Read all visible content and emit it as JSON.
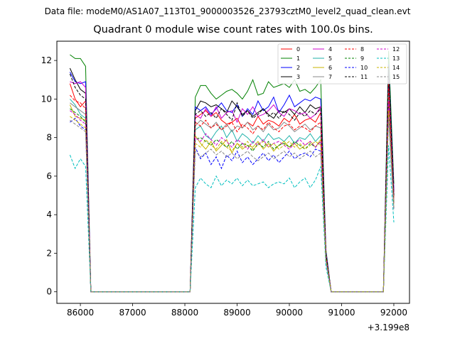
{
  "chart_data": {
    "type": "line",
    "suptitle": "Data file: modeM0/AS1A07_113T01_9000003526_23793cztM0_level2_quad_clean.evt",
    "title": "Quadrant 0 module wise count rates with 100.0s bins.",
    "xlabel": "",
    "ylabel": "",
    "x_offset_label": "+3.199e8",
    "xlim": [
      85550,
      92300
    ],
    "ylim": [
      -0.6,
      13.0
    ],
    "x_ticks": [
      "86000",
      "87000",
      "88000",
      "89000",
      "90000",
      "91000",
      "92000"
    ],
    "x_tick_values": [
      86000,
      87000,
      88000,
      89000,
      90000,
      91000,
      92000
    ],
    "y_ticks": [
      "0",
      "2",
      "4",
      "6",
      "8",
      "10",
      "12"
    ],
    "y_tick_values": [
      0,
      2,
      4,
      6,
      8,
      10,
      12
    ],
    "legend_position": "top-right",
    "segments": [
      [
        85800,
        85900,
        86000,
        86100,
        86200,
        86300,
        86400,
        86500,
        86600,
        86700,
        86800,
        86900,
        87000,
        87100,
        87200,
        87300,
        87400,
        87500,
        87600,
        87700,
        87800,
        87900,
        88000,
        88100,
        88200,
        88300,
        88400,
        88500,
        88600,
        88700,
        88800,
        88900,
        89000,
        89100,
        89200,
        89300,
        89400,
        89500,
        89600,
        89700,
        89800,
        89900,
        90000,
        90100,
        90200,
        90300,
        90400,
        90500,
        90600,
        90700,
        90800,
        90900,
        91000,
        91100,
        91200,
        91300,
        91400,
        91500,
        91600,
        91700,
        91800,
        91900,
        92000
      ]
    ],
    "series": [
      {
        "name": "0",
        "color": "#ff0000",
        "dash": "solid",
        "values": [
          10.8,
          10.0,
          9.6,
          9.9,
          0,
          0,
          0,
          0,
          0,
          0,
          0,
          0,
          0,
          0,
          0,
          0,
          0,
          0,
          0,
          0,
          0,
          0,
          0,
          0,
          9.0,
          9.2,
          9.4,
          9.1,
          9.3,
          8.9,
          8.7,
          8.8,
          9.0,
          8.5,
          8.8,
          8.6,
          9.1,
          8.7,
          8.9,
          8.8,
          8.6,
          9.0,
          8.8,
          9.2,
          8.7,
          8.9,
          9.0,
          8.8,
          9.3,
          1.9,
          0,
          0,
          0,
          0,
          0,
          0,
          0,
          0,
          0,
          0,
          0,
          11.2,
          5.2
        ]
      },
      {
        "name": "1",
        "color": "#008000",
        "dash": "solid",
        "values": [
          12.3,
          12.1,
          12.1,
          11.7,
          0,
          0,
          0,
          0,
          0,
          0,
          0,
          0,
          0,
          0,
          0,
          0,
          0,
          0,
          0,
          0,
          0,
          0,
          0,
          0,
          10.1,
          10.7,
          10.7,
          10.3,
          10.0,
          10.2,
          10.4,
          10.5,
          10.3,
          10.0,
          10.4,
          11.0,
          10.2,
          10.3,
          10.9,
          10.6,
          10.7,
          10.8,
          10.6,
          11.0,
          10.4,
          10.5,
          10.3,
          10.6,
          11.0,
          2.2,
          0,
          0,
          0,
          0,
          0,
          0,
          0,
          0,
          0,
          0,
          0,
          12.5,
          5.6
        ]
      },
      {
        "name": "2",
        "color": "#0000ff",
        "dash": "solid",
        "values": [
          11.4,
          10.9,
          10.8,
          10.9,
          0,
          0,
          0,
          0,
          0,
          0,
          0,
          0,
          0,
          0,
          0,
          0,
          0,
          0,
          0,
          0,
          0,
          0,
          0,
          0,
          9.6,
          9.4,
          9.6,
          9.2,
          9.5,
          9.8,
          9.4,
          9.3,
          9.7,
          9.1,
          9.5,
          9.2,
          9.9,
          9.4,
          9.6,
          10.1,
          9.3,
          9.7,
          10.2,
          9.6,
          9.8,
          10.0,
          9.9,
          10.1,
          10.0,
          2.1,
          0,
          0,
          0,
          0,
          0,
          0,
          0,
          0,
          0,
          0,
          0,
          11.8,
          5.3
        ]
      },
      {
        "name": "3",
        "color": "#000000",
        "dash": "solid",
        "values": [
          11.6,
          11.0,
          10.5,
          10.3,
          0,
          0,
          0,
          0,
          0,
          0,
          0,
          0,
          0,
          0,
          0,
          0,
          0,
          0,
          0,
          0,
          0,
          0,
          0,
          0,
          9.4,
          9.9,
          9.8,
          9.6,
          9.7,
          9.5,
          9.3,
          9.9,
          9.6,
          9.2,
          9.4,
          9.1,
          9.3,
          9.5,
          9.2,
          9.0,
          9.4,
          9.3,
          9.5,
          9.2,
          9.6,
          9.3,
          9.7,
          9.5,
          9.6,
          2.0,
          0,
          0,
          0,
          0,
          0,
          0,
          0,
          0,
          0,
          0,
          0,
          11.5,
          5.0
        ]
      },
      {
        "name": "4",
        "color": "#cc00cc",
        "dash": "solid",
        "values": [
          10.9,
          10.8,
          10.9,
          10.6,
          0,
          0,
          0,
          0,
          0,
          0,
          0,
          0,
          0,
          0,
          0,
          0,
          0,
          0,
          0,
          0,
          0,
          0,
          0,
          0,
          9.2,
          9.0,
          9.5,
          9.1,
          9.6,
          9.0,
          9.3,
          9.4,
          8.8,
          9.5,
          9.2,
          9.6,
          9.1,
          9.2,
          9.4,
          9.7,
          9.3,
          9.1,
          9.5,
          9.4,
          9.2,
          9.3,
          9.0,
          9.2,
          9.6,
          2.0,
          0,
          0,
          0,
          0,
          0,
          0,
          0,
          0,
          0,
          0,
          0,
          11.0,
          5.1
        ]
      },
      {
        "name": "5",
        "color": "#20b2aa",
        "dash": "solid",
        "values": [
          10.0,
          9.7,
          9.2,
          9.0,
          0,
          0,
          0,
          0,
          0,
          0,
          0,
          0,
          0,
          0,
          0,
          0,
          0,
          0,
          0,
          0,
          0,
          0,
          0,
          0,
          8.4,
          8.6,
          8.1,
          7.9,
          8.3,
          8.6,
          8.0,
          8.4,
          7.8,
          8.2,
          8.0,
          7.7,
          8.1,
          7.8,
          8.2,
          7.9,
          8.0,
          7.8,
          8.1,
          7.7,
          8.0,
          7.9,
          8.2,
          7.8,
          8.1,
          1.8,
          0,
          0,
          0,
          0,
          0,
          0,
          0,
          0,
          0,
          0,
          0,
          10.2,
          4.7
        ]
      },
      {
        "name": "6",
        "color": "#c8b400",
        "dash": "solid",
        "values": [
          9.7,
          9.1,
          9.0,
          8.9,
          0,
          0,
          0,
          0,
          0,
          0,
          0,
          0,
          0,
          0,
          0,
          0,
          0,
          0,
          0,
          0,
          0,
          0,
          0,
          0,
          8.1,
          7.7,
          7.4,
          7.8,
          7.3,
          7.6,
          7.9,
          7.2,
          7.7,
          7.4,
          7.6,
          7.5,
          7.8,
          7.4,
          7.7,
          7.3,
          7.6,
          7.8,
          7.5,
          7.7,
          7.4,
          7.6,
          7.8,
          7.5,
          7.9,
          1.8,
          0,
          0,
          0,
          0,
          0,
          0,
          0,
          0,
          0,
          0,
          0,
          9.8,
          4.6
        ]
      },
      {
        "name": "7",
        "color": "#888888",
        "dash": "solid",
        "values": [
          9.8,
          9.6,
          9.4,
          9.2,
          0,
          0,
          0,
          0,
          0,
          0,
          0,
          0,
          0,
          0,
          0,
          0,
          0,
          0,
          0,
          0,
          0,
          0,
          0,
          0,
          8.6,
          8.9,
          8.7,
          8.5,
          8.8,
          8.4,
          8.7,
          8.3,
          8.6,
          8.5,
          8.8,
          8.4,
          8.6,
          8.3,
          8.7,
          8.4,
          8.5,
          8.8,
          8.6,
          8.3,
          8.5,
          8.7,
          8.4,
          8.6,
          8.5,
          1.9,
          0,
          0,
          0,
          0,
          0,
          0,
          0,
          0,
          0,
          0,
          0,
          10.5,
          4.9
        ]
      },
      {
        "name": "8",
        "color": "#ff0000",
        "dash": "dashed",
        "values": [
          10.2,
          9.9,
          9.8,
          9.5,
          0,
          0,
          0,
          0,
          0,
          0,
          0,
          0,
          0,
          0,
          0,
          0,
          0,
          0,
          0,
          0,
          0,
          0,
          0,
          0,
          8.8,
          8.6,
          8.9,
          8.5,
          8.7,
          8.4,
          8.6,
          8.8,
          8.3,
          8.7,
          8.5,
          8.2,
          8.6,
          8.4,
          8.8,
          8.5,
          8.3,
          8.6,
          8.7,
          8.4,
          8.6,
          8.5,
          8.3,
          8.6,
          8.8,
          1.9,
          0,
          0,
          0,
          0,
          0,
          0,
          0,
          0,
          0,
          0,
          0,
          10.8,
          4.8
        ]
      },
      {
        "name": "9",
        "color": "#008000",
        "dash": "dashed",
        "values": [
          9.5,
          9.3,
          9.1,
          8.8,
          0,
          0,
          0,
          0,
          0,
          0,
          0,
          0,
          0,
          0,
          0,
          0,
          0,
          0,
          0,
          0,
          0,
          0,
          0,
          0,
          7.9,
          8.0,
          7.8,
          7.6,
          7.9,
          7.7,
          7.5,
          7.8,
          7.4,
          7.7,
          7.6,
          7.3,
          7.7,
          7.5,
          7.8,
          7.4,
          7.6,
          7.7,
          7.5,
          7.8,
          7.6,
          7.4,
          7.7,
          7.5,
          7.8,
          1.7,
          0,
          0,
          0,
          0,
          0,
          0,
          0,
          0,
          0,
          0,
          0,
          9.6,
          4.5
        ]
      },
      {
        "name": "10",
        "color": "#0000ff",
        "dash": "dashed",
        "values": [
          8.8,
          9.0,
          8.6,
          8.4,
          0,
          0,
          0,
          0,
          0,
          0,
          0,
          0,
          0,
          0,
          0,
          0,
          0,
          0,
          0,
          0,
          0,
          0,
          0,
          0,
          7.5,
          6.9,
          7.2,
          6.6,
          7.0,
          6.4,
          7.1,
          6.8,
          7.3,
          6.7,
          7.0,
          6.6,
          6.9,
          7.2,
          6.8,
          7.1,
          6.7,
          7.0,
          7.3,
          6.9,
          7.1,
          7.2,
          7.0,
          7.4,
          7.3,
          1.6,
          0,
          0,
          0,
          0,
          0,
          0,
          0,
          0,
          0,
          0,
          0,
          9.2,
          4.3
        ]
      },
      {
        "name": "11",
        "color": "#000000",
        "dash": "dashed",
        "values": [
          11.3,
          10.6,
          10.2,
          10.0,
          0,
          0,
          0,
          0,
          0,
          0,
          0,
          0,
          0,
          0,
          0,
          0,
          0,
          0,
          0,
          0,
          0,
          0,
          0,
          0,
          9.2,
          9.4,
          9.1,
          9.3,
          9.0,
          9.5,
          9.2,
          8.9,
          9.8,
          9.1,
          9.4,
          9.0,
          9.2,
          9.5,
          9.1,
          9.3,
          9.0,
          9.4,
          9.2,
          8.9,
          9.3,
          9.1,
          9.4,
          9.2,
          9.5,
          2.0,
          0,
          0,
          0,
          0,
          0,
          0,
          0,
          0,
          0,
          0,
          0,
          11.7,
          5.0
        ]
      },
      {
        "name": "12",
        "color": "#cc00cc",
        "dash": "dashed",
        "values": [
          9.4,
          9.2,
          8.9,
          8.7,
          0,
          0,
          0,
          0,
          0,
          0,
          0,
          0,
          0,
          0,
          0,
          0,
          0,
          0,
          0,
          0,
          0,
          0,
          0,
          0,
          8.0,
          7.8,
          8.2,
          7.9,
          7.6,
          8.0,
          7.8,
          7.5,
          7.9,
          7.7,
          7.4,
          7.8,
          7.6,
          7.9,
          7.5,
          7.7,
          7.8,
          7.6,
          7.4,
          7.7,
          7.9,
          7.6,
          7.8,
          7.5,
          7.8,
          1.7,
          0,
          0,
          0,
          0,
          0,
          0,
          0,
          0,
          0,
          0,
          0,
          9.9,
          4.6
        ]
      },
      {
        "name": "13",
        "color": "#00bfbf",
        "dash": "dashed",
        "values": [
          7.1,
          6.4,
          6.9,
          6.5,
          0,
          0,
          0,
          0,
          0,
          0,
          0,
          0,
          0,
          0,
          0,
          0,
          0,
          0,
          0,
          0,
          0,
          0,
          0,
          0,
          5.4,
          5.9,
          5.6,
          5.4,
          6.0,
          5.5,
          5.8,
          5.6,
          5.9,
          5.5,
          5.8,
          5.5,
          5.6,
          5.7,
          5.4,
          5.6,
          5.7,
          5.6,
          5.9,
          5.4,
          5.7,
          5.9,
          5.4,
          5.8,
          6.5,
          1.3,
          0,
          0,
          0,
          0,
          0,
          0,
          0,
          0,
          0,
          0,
          0,
          7.6,
          3.6
        ]
      },
      {
        "name": "14",
        "color": "#c8b400",
        "dash": "dashed",
        "values": [
          9.1,
          8.9,
          8.7,
          8.5,
          0,
          0,
          0,
          0,
          0,
          0,
          0,
          0,
          0,
          0,
          0,
          0,
          0,
          0,
          0,
          0,
          0,
          0,
          0,
          0,
          7.7,
          7.5,
          7.9,
          7.6,
          7.4,
          7.8,
          7.5,
          7.3,
          7.7,
          7.5,
          7.8,
          7.4,
          7.6,
          7.8,
          7.5,
          7.7,
          7.4,
          7.6,
          7.8,
          7.5,
          7.7,
          7.4,
          7.6,
          7.8,
          7.6,
          1.7,
          0,
          0,
          0,
          0,
          0,
          0,
          0,
          0,
          0,
          0,
          0,
          9.4,
          4.4
        ]
      },
      {
        "name": "15",
        "color": "#888888",
        "dash": "dashed",
        "values": [
          8.9,
          8.7,
          8.5,
          8.3,
          0,
          0,
          0,
          0,
          0,
          0,
          0,
          0,
          0,
          0,
          0,
          0,
          0,
          0,
          0,
          0,
          0,
          0,
          0,
          0,
          7.3,
          7.0,
          7.2,
          7.4,
          7.1,
          7.3,
          7.0,
          7.2,
          6.9,
          7.1,
          7.3,
          7.0,
          6.8,
          7.0,
          7.2,
          6.9,
          7.1,
          7.3,
          7.0,
          7.2,
          6.9,
          7.1,
          7.3,
          7.0,
          7.2,
          1.6,
          0,
          0,
          0,
          0,
          0,
          0,
          0,
          0,
          0,
          0,
          0,
          9.0,
          4.2
        ]
      }
    ]
  }
}
